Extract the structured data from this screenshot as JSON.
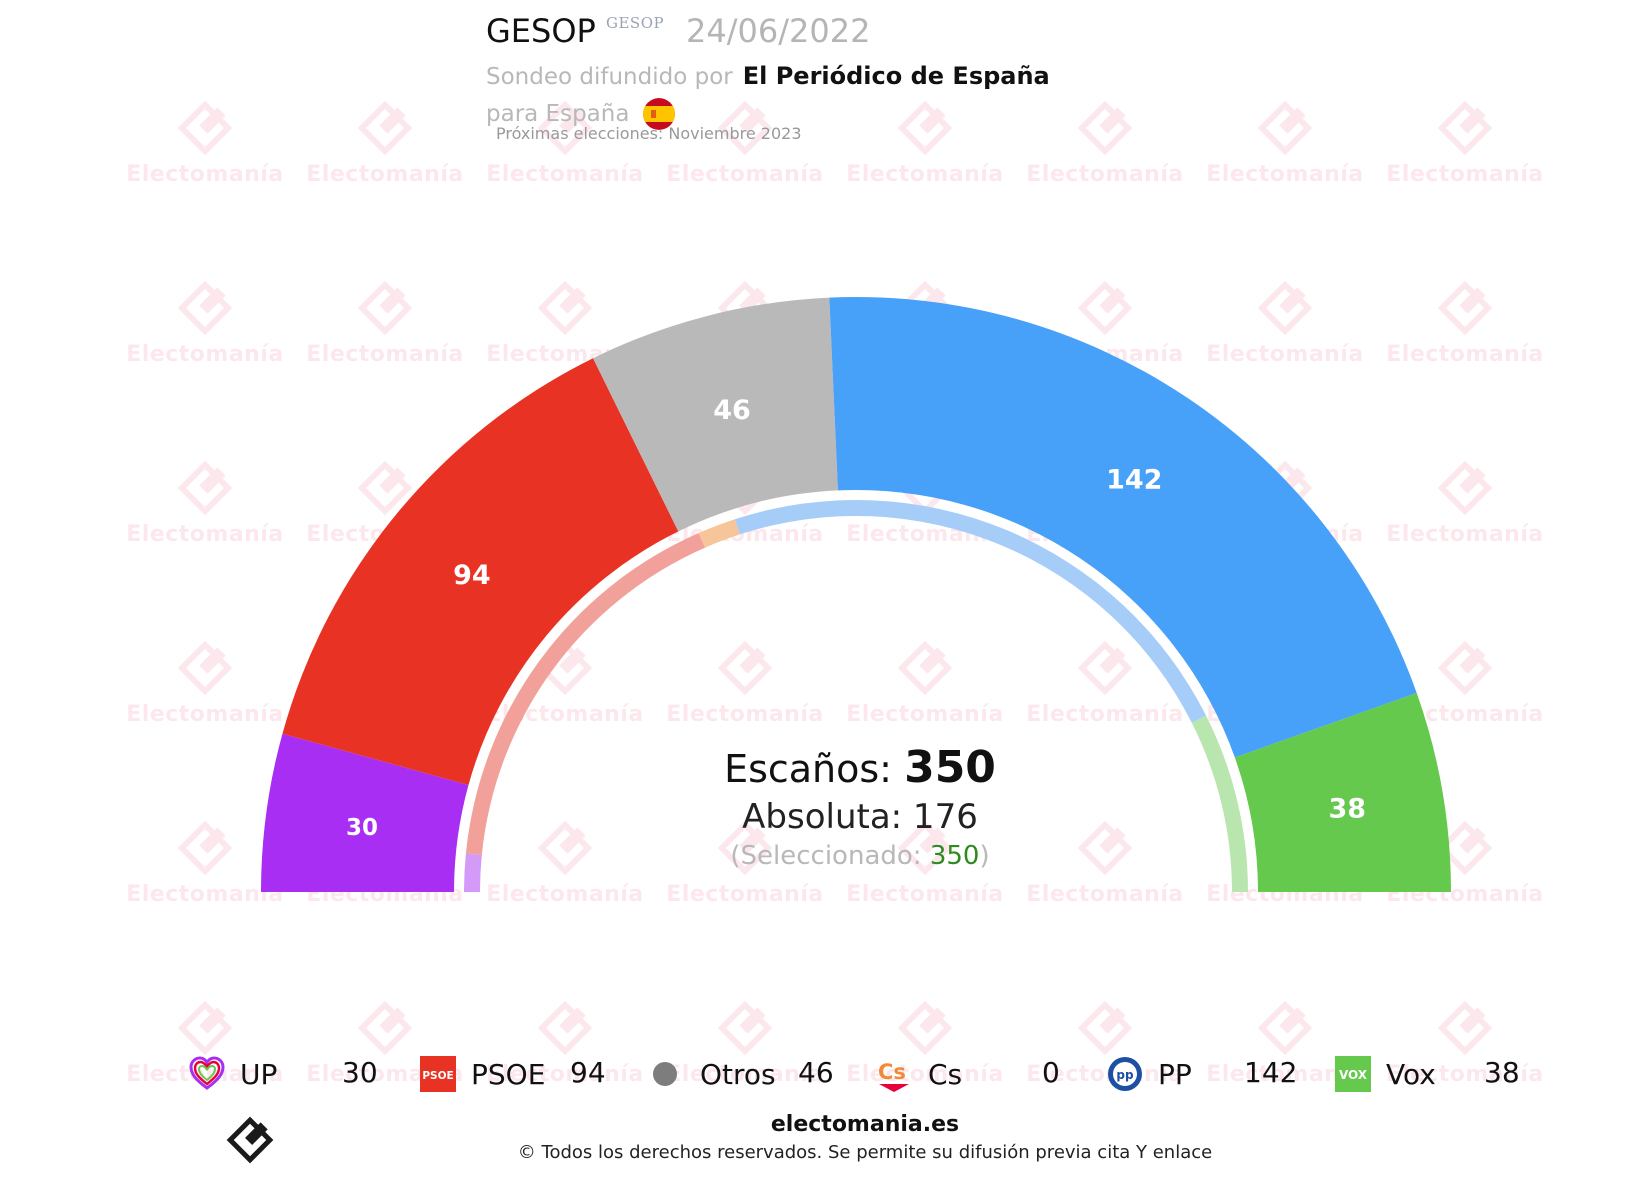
{
  "header": {
    "pollster": "GESOP",
    "pollster_logo_text": "GESOP",
    "date": "24/06/2022",
    "sub_prefix": "Sondeo difundido por",
    "media": "El Periódico de España",
    "region": "para España",
    "region_flag_icon": "spain-flag-icon",
    "next_election": "Próximas elecciones: Noviembre 2023"
  },
  "watermark": {
    "text": "Electomanía",
    "icon": "electomania-logo-icon",
    "color": "#e8003d"
  },
  "chart_data": {
    "type": "parliament-arc",
    "total_seats": 350,
    "parties": [
      {
        "name": "UP",
        "seats": 30,
        "color": "#a72ef2",
        "icon": "up-heart-icon"
      },
      {
        "name": "PSOE",
        "seats": 94,
        "color": "#e83324",
        "icon": "psoe-logo-icon"
      },
      {
        "name": "Otros",
        "seats": 46,
        "color": "#b9b9b9",
        "icon": "otros-dot-icon"
      },
      {
        "name": "Cs",
        "seats": 0,
        "color": "#f28a3a",
        "icon": "cs-logo-icon"
      },
      {
        "name": "PP",
        "seats": 142,
        "color": "#48a1f8",
        "icon": "pp-logo-icon"
      },
      {
        "name": "Vox",
        "seats": 38,
        "color": "#64c94c",
        "icon": "vox-logo-icon"
      }
    ],
    "inner_ring": [
      {
        "name": "UP",
        "seats": 11,
        "color": "#d49af8"
      },
      {
        "name": "PSOE",
        "seats": 118,
        "color": "#f2a19a"
      },
      {
        "name": "Cs",
        "seats": 11,
        "color": "#f7c59a"
      },
      {
        "name": "PP",
        "seats": 158,
        "color": "#a6cdf8"
      },
      {
        "name": "Vox",
        "seats": 52,
        "color": "#b9e6ae"
      }
    ]
  },
  "center": {
    "seats_label": "Escaños:",
    "seats_total": "350",
    "absolute_label": "Absoluta: 176",
    "selected_prefix": "(Seleccionado: ",
    "selected_value": "350",
    "selected_suffix": ")"
  },
  "legend": [
    {
      "name": "UP",
      "seats": "30"
    },
    {
      "name": "PSOE",
      "seats": "94"
    },
    {
      "name": "Otros",
      "seats": "46"
    },
    {
      "name": "Cs",
      "seats": "0"
    },
    {
      "name": "PP",
      "seats": "142"
    },
    {
      "name": "Vox",
      "seats": "38"
    }
  ],
  "footer": {
    "site": "electomania.es",
    "copyright": "© Todos los derechos reservados. Se permite su difusión previa cita Y enlace",
    "logo_icon": "electomania-logo-icon"
  }
}
